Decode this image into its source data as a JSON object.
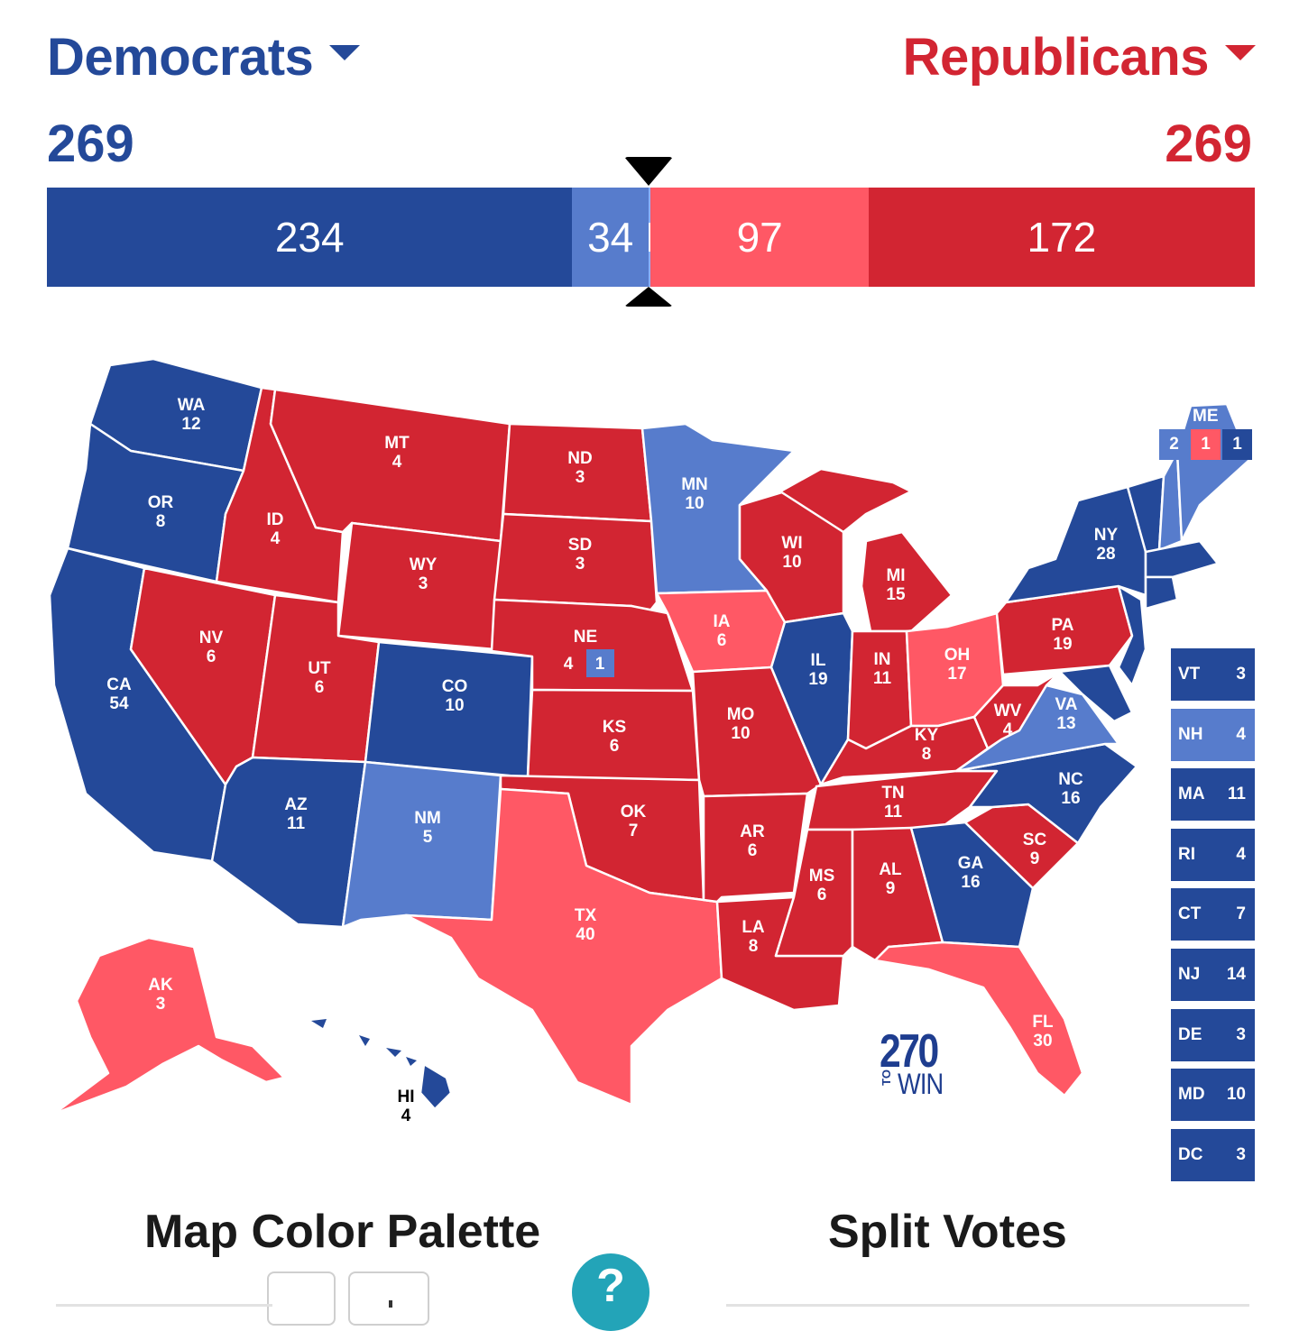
{
  "header": {
    "democrats": {
      "name": "Democrats",
      "total": "269"
    },
    "republicans": {
      "name": "Republicans",
      "total": "269"
    }
  },
  "progress_bar": {
    "scale_total": 538,
    "segments": [
      {
        "label": "234",
        "value": 234,
        "color": "#244999",
        "category": "safe-dem"
      },
      {
        "label": "34",
        "value": 34,
        "color": "#577ccc",
        "category": "likely-dem"
      },
      {
        "label": "1",
        "value": 1,
        "color": "#8aafff",
        "category": "lean-dem"
      },
      {
        "label": "97",
        "value": 97,
        "color": "#ff5865",
        "category": "likely-rep"
      },
      {
        "label": "172",
        "value": 172,
        "color": "#d22532",
        "category": "safe-rep"
      }
    ]
  },
  "colors": {
    "safe_dem": "#244999",
    "likely_dem": "#577ccc",
    "lean_dem": "#8aafff",
    "likely_rep": "#ff5865",
    "safe_rep": "#d22532"
  },
  "states": {
    "WA": {
      "abbr": "WA",
      "ev": "12"
    },
    "OR": {
      "abbr": "OR",
      "ev": "8"
    },
    "CA": {
      "abbr": "CA",
      "ev": "54"
    },
    "ID": {
      "abbr": "ID",
      "ev": "4"
    },
    "NV": {
      "abbr": "NV",
      "ev": "6"
    },
    "MT": {
      "abbr": "MT",
      "ev": "4"
    },
    "WY": {
      "abbr": "WY",
      "ev": "3"
    },
    "UT": {
      "abbr": "UT",
      "ev": "6"
    },
    "AZ": {
      "abbr": "AZ",
      "ev": "11"
    },
    "CO": {
      "abbr": "CO",
      "ev": "10"
    },
    "NM": {
      "abbr": "NM",
      "ev": "5"
    },
    "ND": {
      "abbr": "ND",
      "ev": "3"
    },
    "SD": {
      "abbr": "SD",
      "ev": "3"
    },
    "NE": {
      "abbr": "NE",
      "ev": "4",
      "district_ev": "1"
    },
    "KS": {
      "abbr": "KS",
      "ev": "6"
    },
    "OK": {
      "abbr": "OK",
      "ev": "7"
    },
    "TX": {
      "abbr": "TX",
      "ev": "40"
    },
    "MN": {
      "abbr": "MN",
      "ev": "10"
    },
    "IA": {
      "abbr": "IA",
      "ev": "6"
    },
    "MO": {
      "abbr": "MO",
      "ev": "10"
    },
    "AR": {
      "abbr": "AR",
      "ev": "6"
    },
    "LA": {
      "abbr": "LA",
      "ev": "8"
    },
    "WI": {
      "abbr": "WI",
      "ev": "10"
    },
    "IL": {
      "abbr": "IL",
      "ev": "19"
    },
    "MI": {
      "abbr": "MI",
      "ev": "15"
    },
    "IN": {
      "abbr": "IN",
      "ev": "11"
    },
    "OH": {
      "abbr": "OH",
      "ev": "17"
    },
    "KY": {
      "abbr": "KY",
      "ev": "8"
    },
    "TN": {
      "abbr": "TN",
      "ev": "11"
    },
    "MS": {
      "abbr": "MS",
      "ev": "6"
    },
    "AL": {
      "abbr": "AL",
      "ev": "9"
    },
    "GA": {
      "abbr": "GA",
      "ev": "16"
    },
    "FL": {
      "abbr": "FL",
      "ev": "30"
    },
    "SC": {
      "abbr": "SC",
      "ev": "9"
    },
    "NC": {
      "abbr": "NC",
      "ev": "16"
    },
    "VA": {
      "abbr": "VA",
      "ev": "13"
    },
    "WV": {
      "abbr": "WV",
      "ev": "4"
    },
    "PA": {
      "abbr": "PA",
      "ev": "19"
    },
    "NY": {
      "abbr": "NY",
      "ev": "28"
    },
    "AK": {
      "abbr": "AK",
      "ev": "3"
    },
    "HI": {
      "abbr": "HI",
      "ev": "4"
    }
  },
  "maine": {
    "label": "ME",
    "boxes": [
      {
        "value": "2",
        "color": "#577ccc"
      },
      {
        "value": "1",
        "color": "#ff5865"
      },
      {
        "value": "1",
        "color": "#244999"
      }
    ]
  },
  "small_states": [
    {
      "abbr": "VT",
      "ev": "3",
      "color": "#244999"
    },
    {
      "abbr": "NH",
      "ev": "4",
      "color": "#577ccc"
    },
    {
      "abbr": "MA",
      "ev": "11",
      "color": "#244999"
    },
    {
      "abbr": "RI",
      "ev": "4",
      "color": "#244999"
    },
    {
      "abbr": "CT",
      "ev": "7",
      "color": "#244999"
    },
    {
      "abbr": "NJ",
      "ev": "14",
      "color": "#244999"
    },
    {
      "abbr": "DE",
      "ev": "3",
      "color": "#244999"
    },
    {
      "abbr": "MD",
      "ev": "10",
      "color": "#244999"
    },
    {
      "abbr": "DC",
      "ev": "3",
      "color": "#244999"
    }
  ],
  "logo": {
    "number": "270",
    "to": "TO",
    "win": "WIN"
  },
  "bottom": {
    "palette_title": "Map Color Palette",
    "split_title": "Split Votes",
    "help_label": "?"
  }
}
